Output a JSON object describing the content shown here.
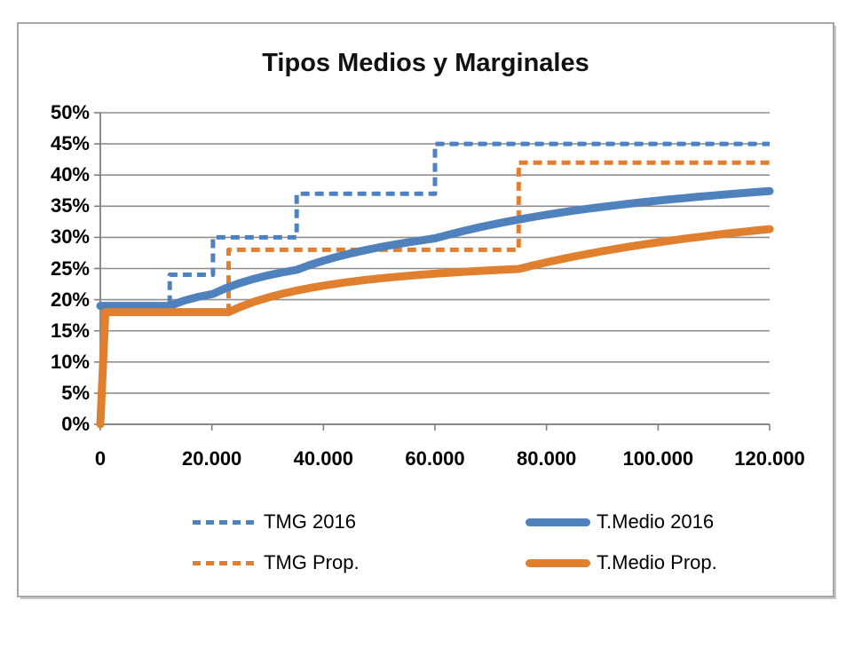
{
  "chart": {
    "title": "Tipos Medios y Marginales",
    "colors": {
      "blue": "#4F81BD",
      "orange": "#E07F2D",
      "gridline": "#8F8F8F",
      "axis": "#7F7F7F",
      "text": "#000000",
      "frame_border": "#A6A6A6",
      "background": "#FFFFFF"
    },
    "legend": {
      "items": [
        {
          "label": "TMG 2016",
          "style": "dashed",
          "color": "blue"
        },
        {
          "label": "TMG Prop.",
          "style": "dashed",
          "color": "orange"
        },
        {
          "label": "T.Medio 2016",
          "style": "solid",
          "color": "blue"
        },
        {
          "label": "T.Medio Prop.",
          "style": "solid",
          "color": "orange"
        }
      ]
    }
  },
  "chart_data": {
    "type": "line",
    "title": "Tipos Medios y Marginales",
    "xlabel": "",
    "ylabel": "",
    "xlim": [
      0,
      120000
    ],
    "ylim": [
      0,
      50
    ],
    "grid": true,
    "legend_position": "bottom",
    "x_ticks": {
      "values": [
        0,
        20000,
        40000,
        60000,
        80000,
        100000,
        120000
      ],
      "labels": [
        "0",
        "20.000",
        "40.000",
        "60.000",
        "80.000",
        "100.000",
        "120.000"
      ]
    },
    "y_ticks": {
      "values": [
        0,
        5,
        10,
        15,
        20,
        25,
        30,
        35,
        40,
        45,
        50
      ],
      "labels": [
        "0%",
        "5%",
        "10%",
        "15%",
        "20%",
        "25%",
        "30%",
        "35%",
        "40%",
        "45%",
        "50%"
      ]
    },
    "series": [
      {
        "name": "TMG 2016",
        "kind": "marginal-step",
        "color": "blue",
        "dash": true,
        "width": 5,
        "brackets": [
          [
            0,
            19
          ],
          [
            12450,
            24
          ],
          [
            20200,
            30
          ],
          [
            35200,
            37
          ],
          [
            60000,
            45
          ]
        ],
        "points": [
          [
            0,
            19
          ],
          [
            12450,
            19
          ],
          [
            12450,
            24
          ],
          [
            20200,
            24
          ],
          [
            20200,
            30
          ],
          [
            35200,
            30
          ],
          [
            35200,
            37
          ],
          [
            60000,
            37
          ],
          [
            60000,
            45
          ],
          [
            120000,
            45
          ]
        ]
      },
      {
        "name": "TMG Prop.",
        "kind": "marginal-step",
        "color": "orange",
        "dash": true,
        "width": 5,
        "brackets": [
          [
            0,
            18
          ],
          [
            23000,
            28
          ],
          [
            75000,
            42
          ]
        ],
        "points": [
          [
            0,
            18
          ],
          [
            23000,
            18
          ],
          [
            23000,
            28
          ],
          [
            75000,
            28
          ],
          [
            75000,
            42
          ],
          [
            120000,
            42
          ]
        ]
      },
      {
        "name": "T.Medio 2016",
        "kind": "average",
        "color": "blue",
        "dash": false,
        "width": 9,
        "points": [
          [
            0,
            19
          ],
          [
            12450,
            19
          ],
          [
            15000,
            19.85
          ],
          [
            17500,
            20.44
          ],
          [
            20200,
            20.92
          ],
          [
            22500,
            21.85
          ],
          [
            25000,
            22.66
          ],
          [
            27500,
            23.33
          ],
          [
            30000,
            23.89
          ],
          [
            32500,
            24.36
          ],
          [
            35200,
            24.79
          ],
          [
            37500,
            25.54
          ],
          [
            40000,
            26.25
          ],
          [
            42500,
            26.89
          ],
          [
            45000,
            27.45
          ],
          [
            47500,
            27.95
          ],
          [
            50000,
            28.4
          ],
          [
            52500,
            28.81
          ],
          [
            55000,
            29.18
          ],
          [
            57500,
            29.52
          ],
          [
            60000,
            29.84
          ],
          [
            62500,
            30.44
          ],
          [
            65000,
            31
          ],
          [
            67500,
            31.52
          ],
          [
            70000,
            32
          ],
          [
            72500,
            32.45
          ],
          [
            75000,
            32.87
          ],
          [
            77500,
            33.26
          ],
          [
            80000,
            33.63
          ],
          [
            82500,
            33.97
          ],
          [
            85000,
            34.3
          ],
          [
            87500,
            34.6
          ],
          [
            90000,
            34.89
          ],
          [
            92500,
            35.16
          ],
          [
            95000,
            35.42
          ],
          [
            97500,
            35.67
          ],
          [
            100000,
            35.9
          ],
          [
            102500,
            36.12
          ],
          [
            105000,
            36.33
          ],
          [
            107500,
            36.54
          ],
          [
            110000,
            36.73
          ],
          [
            112500,
            36.91
          ],
          [
            115000,
            37.09
          ],
          [
            117500,
            37.26
          ],
          [
            120000,
            37.42
          ]
        ]
      },
      {
        "name": "T.Medio Prop.",
        "kind": "average",
        "color": "orange",
        "dash": false,
        "width": 9,
        "points": [
          [
            0,
            0
          ],
          [
            900,
            18
          ],
          [
            5000,
            18
          ],
          [
            10000,
            18
          ],
          [
            15000,
            18
          ],
          [
            20000,
            18
          ],
          [
            23000,
            18
          ],
          [
            25000,
            18.8
          ],
          [
            27500,
            19.64
          ],
          [
            30000,
            20.33
          ],
          [
            32500,
            20.92
          ],
          [
            35000,
            21.43
          ],
          [
            37500,
            21.87
          ],
          [
            40000,
            22.25
          ],
          [
            42500,
            22.59
          ],
          [
            45000,
            22.89
          ],
          [
            47500,
            23.16
          ],
          [
            50000,
            23.4
          ],
          [
            52500,
            23.62
          ],
          [
            55000,
            23.82
          ],
          [
            57500,
            24
          ],
          [
            60000,
            24.17
          ],
          [
            62500,
            24.32
          ],
          [
            65000,
            24.46
          ],
          [
            67500,
            24.59
          ],
          [
            70000,
            24.71
          ],
          [
            72500,
            24.83
          ],
          [
            75000,
            24.93
          ],
          [
            77500,
            25.48
          ],
          [
            80000,
            26
          ],
          [
            82500,
            26.48
          ],
          [
            85000,
            26.94
          ],
          [
            87500,
            27.37
          ],
          [
            90000,
            27.78
          ],
          [
            92500,
            28.16
          ],
          [
            95000,
            28.53
          ],
          [
            97500,
            28.87
          ],
          [
            100000,
            29.2
          ],
          [
            102500,
            29.51
          ],
          [
            105000,
            29.81
          ],
          [
            107500,
            30.09
          ],
          [
            110000,
            30.36
          ],
          [
            112500,
            30.62
          ],
          [
            115000,
            30.87
          ],
          [
            117500,
            31.11
          ],
          [
            120000,
            31.33
          ]
        ]
      }
    ]
  }
}
